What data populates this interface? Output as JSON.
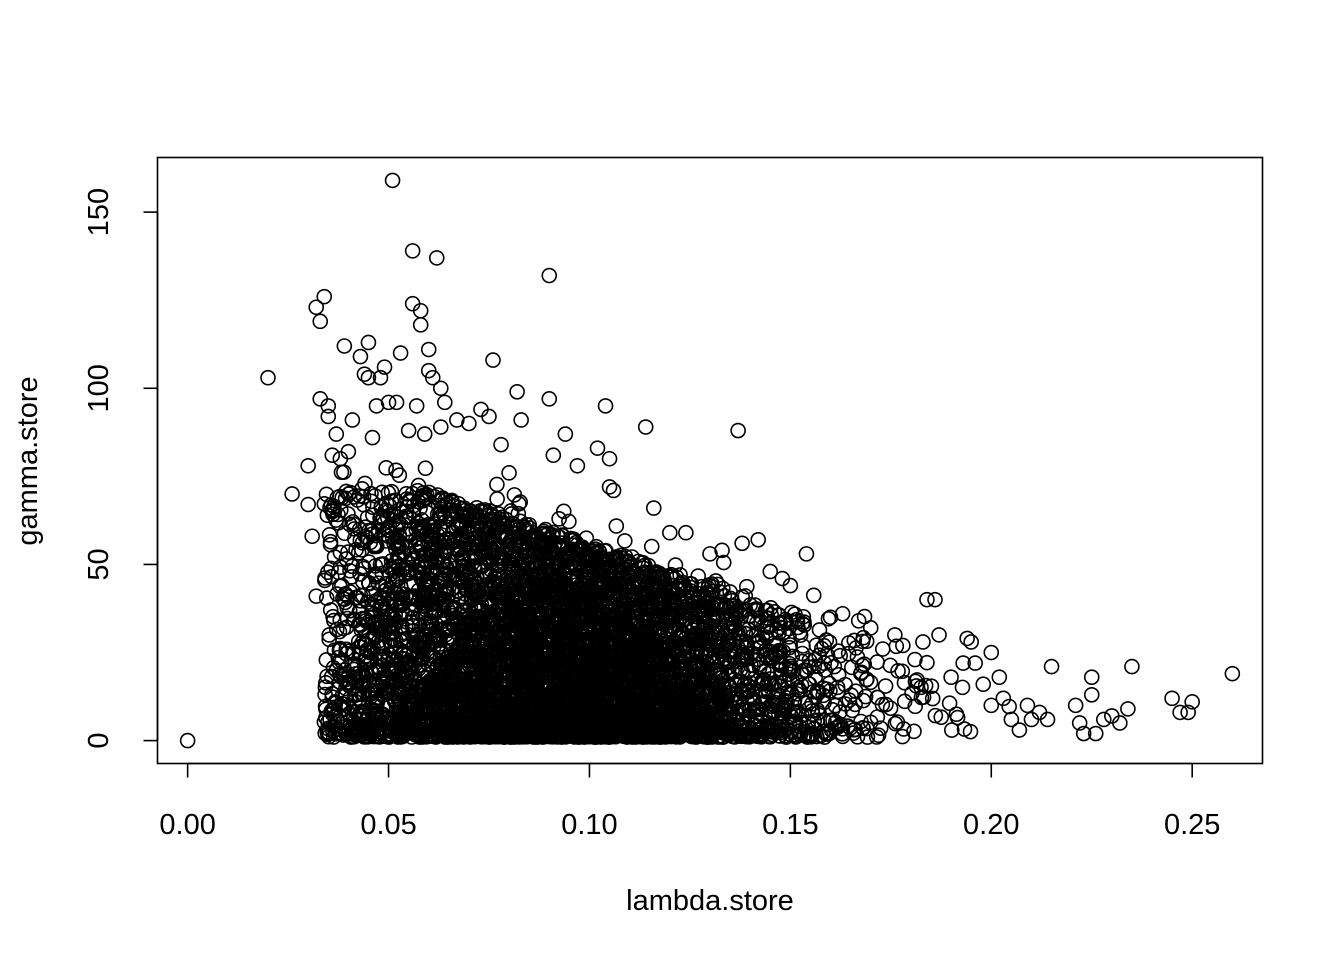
{
  "chart_data": {
    "type": "scatter",
    "title": "",
    "xlabel": "lambda.store",
    "ylabel": "gamma.store",
    "xlim": [
      -0.0075,
      0.2675
    ],
    "ylim": [
      -6.5,
      165.5
    ],
    "x_ticks": [
      0.0,
      0.05,
      0.1,
      0.15,
      0.2,
      0.25
    ],
    "x_tick_labels": [
      "0.00",
      "0.05",
      "0.10",
      "0.15",
      "0.20",
      "0.25"
    ],
    "y_ticks": [
      0,
      50,
      100,
      150
    ],
    "y_tick_labels": [
      "0",
      "50",
      "100",
      "150"
    ],
    "grid": false,
    "legend": "none",
    "marker": "open-circle",
    "color": "#000000",
    "series": [
      {
        "points": [
          [
            0.0,
            0.0
          ],
          [
            0.02,
            103
          ],
          [
            0.026,
            70
          ],
          [
            0.03,
            78
          ],
          [
            0.03,
            67
          ],
          [
            0.031,
            58
          ],
          [
            0.032,
            41
          ],
          [
            0.032,
            123
          ],
          [
            0.033,
            119
          ],
          [
            0.034,
            126
          ],
          [
            0.033,
            97
          ],
          [
            0.035,
            95
          ],
          [
            0.035,
            92
          ],
          [
            0.036,
            65
          ],
          [
            0.036,
            81
          ],
          [
            0.037,
            87
          ],
          [
            0.038,
            80
          ],
          [
            0.039,
            112
          ],
          [
            0.04,
            82
          ],
          [
            0.041,
            91
          ],
          [
            0.043,
            109
          ],
          [
            0.044,
            104
          ],
          [
            0.045,
            103
          ],
          [
            0.045,
            113
          ],
          [
            0.046,
            86
          ],
          [
            0.047,
            95
          ],
          [
            0.048,
            103
          ],
          [
            0.049,
            106
          ],
          [
            0.05,
            96
          ],
          [
            0.051,
            159
          ],
          [
            0.052,
            96
          ],
          [
            0.053,
            110
          ],
          [
            0.055,
            88
          ],
          [
            0.056,
            139
          ],
          [
            0.056,
            124
          ],
          [
            0.057,
            95
          ],
          [
            0.058,
            122
          ],
          [
            0.058,
            118
          ],
          [
            0.059,
            87
          ],
          [
            0.06,
            111
          ],
          [
            0.06,
            105
          ],
          [
            0.061,
            103
          ],
          [
            0.062,
            137
          ],
          [
            0.063,
            100
          ],
          [
            0.063,
            89
          ],
          [
            0.064,
            96
          ],
          [
            0.067,
            91
          ],
          [
            0.07,
            90
          ],
          [
            0.073,
            94
          ],
          [
            0.075,
            92
          ],
          [
            0.076,
            108
          ],
          [
            0.078,
            84
          ],
          [
            0.08,
            76
          ],
          [
            0.082,
            99
          ],
          [
            0.083,
            91
          ],
          [
            0.09,
            132
          ],
          [
            0.09,
            97
          ],
          [
            0.091,
            81
          ],
          [
            0.094,
            87
          ],
          [
            0.097,
            78
          ],
          [
            0.102,
            83
          ],
          [
            0.104,
            95
          ],
          [
            0.105,
            80
          ],
          [
            0.105,
            72
          ],
          [
            0.106,
            71
          ],
          [
            0.114,
            89
          ],
          [
            0.116,
            66
          ],
          [
            0.12,
            59
          ],
          [
            0.124,
            59
          ],
          [
            0.13,
            53
          ],
          [
            0.133,
            54
          ],
          [
            0.137,
            88
          ],
          [
            0.138,
            56
          ],
          [
            0.142,
            57
          ],
          [
            0.145,
            48
          ],
          [
            0.148,
            46
          ],
          [
            0.15,
            44
          ],
          [
            0.154,
            53
          ],
          [
            0.16,
            35
          ],
          [
            0.163,
            36
          ],
          [
            0.167,
            34
          ],
          [
            0.17,
            32
          ],
          [
            0.173,
            26
          ],
          [
            0.176,
            30
          ],
          [
            0.178,
            27
          ],
          [
            0.181,
            23
          ],
          [
            0.183,
            28
          ],
          [
            0.184,
            40
          ],
          [
            0.186,
            40
          ],
          [
            0.187,
            30
          ],
          [
            0.19,
            18
          ],
          [
            0.193,
            22
          ],
          [
            0.194,
            29
          ],
          [
            0.195,
            28
          ],
          [
            0.196,
            22
          ],
          [
            0.198,
            16
          ],
          [
            0.2,
            25
          ],
          [
            0.2,
            10
          ],
          [
            0.202,
            18
          ],
          [
            0.203,
            12
          ],
          [
            0.205,
            6
          ],
          [
            0.207,
            3
          ],
          [
            0.209,
            10
          ],
          [
            0.21,
            6
          ],
          [
            0.212,
            8
          ],
          [
            0.214,
            6
          ],
          [
            0.215,
            21
          ],
          [
            0.221,
            10
          ],
          [
            0.222,
            5
          ],
          [
            0.223,
            2
          ],
          [
            0.225,
            13
          ],
          [
            0.225,
            18
          ],
          [
            0.226,
            2
          ],
          [
            0.228,
            6
          ],
          [
            0.23,
            7
          ],
          [
            0.232,
            5
          ],
          [
            0.234,
            9
          ],
          [
            0.235,
            21
          ],
          [
            0.245,
            12
          ],
          [
            0.247,
            8
          ],
          [
            0.249,
            8
          ],
          [
            0.25,
            11
          ],
          [
            0.26,
            19
          ]
        ]
      }
    ]
  }
}
